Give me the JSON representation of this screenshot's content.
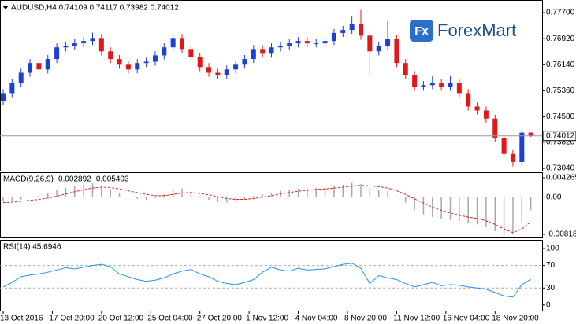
{
  "chart_data": [
    {
      "type": "candlestick",
      "title": "AUDUSD,H4  0.74109 0.74117 0.73982 0.74012",
      "logo_icon": "Fx",
      "logo_text": "ForexMart",
      "up_color": "#1c3fd4",
      "down_color": "#e0181a",
      "last_price_line": true,
      "open": [
        0.7505,
        0.7529,
        0.756,
        0.759,
        0.7619,
        0.76,
        0.7631,
        0.7666,
        0.7671,
        0.7678,
        0.7685,
        0.7694,
        0.7654,
        0.7631,
        0.7614,
        0.76,
        0.7619,
        0.7623,
        0.7642,
        0.7666,
        0.7694,
        0.7661,
        0.7638,
        0.7607,
        0.759,
        0.7583,
        0.76,
        0.7614,
        0.7631,
        0.7661,
        0.7647,
        0.7666,
        0.7671,
        0.7678,
        0.7685,
        0.7678,
        0.7678,
        0.7685,
        0.7709,
        0.7718,
        0.7737,
        0.7701,
        0.7654,
        0.7671,
        0.769,
        0.7619,
        0.7583,
        0.7548,
        0.7553,
        0.756,
        0.7548,
        0.756,
        0.7529,
        0.7489,
        0.7477,
        0.7453,
        0.7394,
        0.7347,
        0.7323,
        0.74109
      ],
      "high": [
        0.7541,
        0.7572,
        0.7602,
        0.7631,
        0.7631,
        0.7643,
        0.7678,
        0.7683,
        0.769,
        0.7697,
        0.771,
        0.7706,
        0.7666,
        0.7643,
        0.7626,
        0.7631,
        0.7635,
        0.7654,
        0.7678,
        0.7706,
        0.7706,
        0.7673,
        0.765,
        0.7619,
        0.7602,
        0.7612,
        0.7626,
        0.7643,
        0.7673,
        0.7673,
        0.7678,
        0.7683,
        0.769,
        0.7697,
        0.7697,
        0.769,
        0.7697,
        0.7721,
        0.773,
        0.776,
        0.7778,
        0.7713,
        0.7683,
        0.7745,
        0.7702,
        0.7631,
        0.7595,
        0.7565,
        0.758,
        0.7572,
        0.758,
        0.7572,
        0.7541,
        0.7501,
        0.7489,
        0.7465,
        0.7406,
        0.7359,
        0.742,
        0.74117
      ],
      "low": [
        0.7493,
        0.7517,
        0.7548,
        0.7578,
        0.7588,
        0.7588,
        0.7619,
        0.7654,
        0.7659,
        0.7666,
        0.7673,
        0.7642,
        0.7619,
        0.7602,
        0.7588,
        0.7588,
        0.7607,
        0.7611,
        0.763,
        0.7654,
        0.7649,
        0.7626,
        0.7595,
        0.7578,
        0.7571,
        0.7571,
        0.7588,
        0.7602,
        0.7619,
        0.7635,
        0.7635,
        0.7654,
        0.7659,
        0.7666,
        0.7666,
        0.7666,
        0.7666,
        0.7673,
        0.7697,
        0.7706,
        0.7689,
        0.7585,
        0.7642,
        0.7659,
        0.7607,
        0.7571,
        0.7536,
        0.7536,
        0.7541,
        0.7536,
        0.7536,
        0.7517,
        0.7477,
        0.7465,
        0.7441,
        0.7382,
        0.7335,
        0.731,
        0.7311,
        0.73982
      ],
      "close": [
        0.7529,
        0.756,
        0.759,
        0.7619,
        0.76,
        0.7631,
        0.7666,
        0.7671,
        0.7678,
        0.7685,
        0.7694,
        0.7654,
        0.7631,
        0.7614,
        0.76,
        0.7619,
        0.7623,
        0.7642,
        0.7666,
        0.7694,
        0.7661,
        0.7638,
        0.7607,
        0.759,
        0.7583,
        0.76,
        0.7614,
        0.7631,
        0.7661,
        0.7647,
        0.7666,
        0.7671,
        0.7678,
        0.7685,
        0.7678,
        0.7678,
        0.7685,
        0.7709,
        0.7718,
        0.7737,
        0.7701,
        0.7654,
        0.7671,
        0.769,
        0.7619,
        0.7583,
        0.7548,
        0.7553,
        0.756,
        0.7548,
        0.756,
        0.7529,
        0.7489,
        0.7477,
        0.7453,
        0.7394,
        0.7347,
        0.7323,
        0.74109,
        0.74012
      ],
      "ylim": [
        0.7297,
        0.7803
      ],
      "yticks": [
        {
          "value": 0.777,
          "label": "0.77700"
        },
        {
          "value": 0.7692,
          "label": "0.76920"
        },
        {
          "value": 0.7614,
          "label": "0.76140"
        },
        {
          "value": 0.7536,
          "label": "0.75360"
        },
        {
          "value": 0.7458,
          "label": "0.74580"
        },
        {
          "value": 0.7382,
          "label": "0.73820"
        },
        {
          "value": 0.7304,
          "label": "0.73040"
        }
      ]
    },
    {
      "type": "macd",
      "title": "MACD(9,26,9) -0.002892 -0.005403",
      "series": [
        {
          "style": "histogram",
          "color": "#a8a8a8",
          "values": [
            -0.001,
            -0.0008,
            -0.0005,
            -0.0001,
            0.0004,
            0.001,
            0.0016,
            0.0021,
            0.0025,
            0.0028,
            0.0031,
            0.0026,
            0.0018,
            0.0009,
            0.0001,
            -0.0004,
            -0.0006,
            -0.0002,
            0.0006,
            0.0016,
            0.0019,
            0.0012,
            0.0002,
            -0.0006,
            -0.0011,
            -0.0012,
            -0.001,
            -0.0005,
            0.0003,
            0.0006,
            0.001,
            0.0014,
            0.0017,
            0.0019,
            0.002,
            0.002,
            0.0021,
            0.0024,
            0.0027,
            0.0031,
            0.0029,
            0.002,
            0.0016,
            0.0014,
            0.0002,
            -0.0012,
            -0.0028,
            -0.0038,
            -0.0044,
            -0.0049,
            -0.005,
            -0.0052,
            -0.0057,
            -0.006,
            -0.0066,
            -0.0075,
            -0.0084,
            -0.0082,
            -0.0055,
            -0.002892
          ]
        },
        {
          "style": "dashed",
          "color": "#e0181a",
          "values": [
            -0.0012,
            -0.0011,
            -0.0009,
            -0.0007,
            -0.0005,
            -0.0002,
            0.0002,
            0.0007,
            0.0012,
            0.0016,
            0.002,
            0.0022,
            0.0021,
            0.0018,
            0.0014,
            0.001,
            0.0006,
            0.0003,
            0.0003,
            0.0006,
            0.0009,
            0.001,
            0.0008,
            0.0005,
            0.0001,
            -0.0003,
            -0.0005,
            -0.0005,
            -0.0003,
            0.0,
            0.0003,
            0.0007,
            0.001,
            0.0013,
            0.0015,
            0.0017,
            0.0018,
            0.002,
            0.0022,
            0.0024,
            0.0026,
            0.0025,
            0.0023,
            0.002,
            0.0014,
            0.0006,
            -0.0004,
            -0.0013,
            -0.0022,
            -0.0029,
            -0.0035,
            -0.004,
            -0.0044,
            -0.0047,
            -0.0052,
            -0.006,
            -0.007,
            -0.0078,
            -0.007,
            -0.005403
          ]
        }
      ],
      "ylim": [
        -0.008876,
        0.005302
      ],
      "yticks": [
        0.004265,
        {
          "value": 0,
          "label": "0.00"
        },
        -0.008184
      ]
    },
    {
      "type": "rsi",
      "title": "RSI(14) 45.6946",
      "color": "#1e90ff",
      "values": [
        32,
        40,
        50,
        53,
        55,
        58,
        62,
        66,
        64,
        67,
        70,
        72,
        68,
        55,
        50,
        45,
        42,
        44,
        48,
        55,
        60,
        63,
        55,
        50,
        42,
        38,
        36,
        40,
        45,
        58,
        67,
        62,
        60,
        65,
        62,
        63,
        64,
        68,
        72,
        74,
        65,
        38,
        52,
        48,
        45,
        38,
        32,
        36,
        40,
        34,
        36,
        35,
        32,
        30,
        28,
        22,
        16,
        14,
        36,
        45.6946
      ],
      "ylim": [
        -10,
        114
      ],
      "yticks": [
        100,
        70,
        30,
        0
      ],
      "levels": [
        70,
        30
      ],
      "xticks": [
        {
          "value": 0,
          "label": "13 Oct 2016"
        },
        {
          "value": 5.5,
          "label": "17 Oct 20:00"
        },
        {
          "value": 11,
          "label": "20 Oct 12:00"
        },
        {
          "value": 16.5,
          "label": "25 Oct 04:00"
        },
        {
          "value": 22,
          "label": "27 Oct 20:00"
        },
        {
          "value": 27.5,
          "label": "1 Nov 12:00"
        },
        {
          "value": 33,
          "label": "4 Nov 04:00"
        },
        {
          "value": 38.5,
          "label": "8 Nov 20:00"
        },
        {
          "value": 44,
          "label": "11 Nov 12:00"
        },
        {
          "value": 49.5,
          "label": "16 Nov 04:00"
        },
        {
          "value": 55,
          "label": "18 Nov 20:00"
        }
      ]
    }
  ]
}
